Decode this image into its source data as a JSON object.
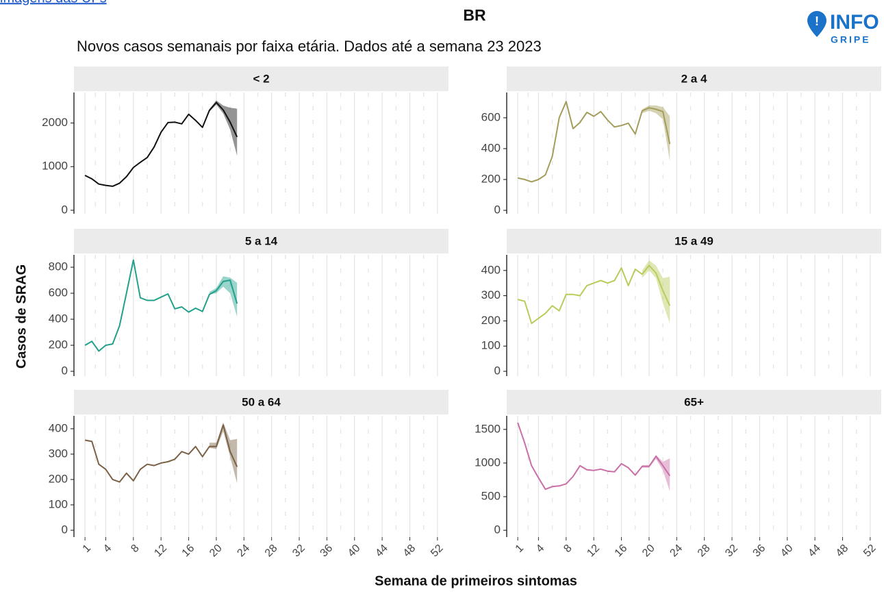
{
  "link_text": "imagens das UFs",
  "logo": {
    "line1": "INFO",
    "line2": "GRIPE"
  },
  "title": "BR",
  "subtitle": "Novos casos semanais por faixa etária. Dados até a semana 23 2023",
  "y_label": "Casos de SRAG",
  "x_label": "Semana de primeiros sintomas",
  "chart_data": [
    {
      "type": "line",
      "title": "< 2",
      "color": "#111111",
      "x": [
        1,
        2,
        3,
        4,
        5,
        6,
        7,
        8,
        9,
        10,
        11,
        12,
        13,
        14,
        15,
        16,
        17,
        18,
        19,
        20,
        21,
        22,
        23
      ],
      "values": [
        800,
        720,
        600,
        570,
        550,
        620,
        770,
        980,
        1100,
        1210,
        1450,
        1790,
        2010,
        2020,
        1980,
        2200,
        2060,
        1900,
        2290,
        2470,
        2300,
        2020,
        1680
      ],
      "lower": [
        null,
        null,
        null,
        null,
        null,
        null,
        null,
        null,
        null,
        null,
        null,
        null,
        null,
        null,
        null,
        null,
        null,
        1900,
        2260,
        2420,
        2220,
        1850,
        1250
      ],
      "upper": [
        null,
        null,
        null,
        null,
        null,
        null,
        null,
        null,
        null,
        null,
        null,
        null,
        null,
        null,
        null,
        null,
        null,
        1900,
        2320,
        2520,
        2400,
        2350,
        2330
      ],
      "xlim": [
        -0.6,
        53.6
      ],
      "xticks": [
        1,
        4,
        8,
        12,
        16,
        20,
        24,
        28,
        32,
        36,
        40,
        44,
        48,
        52
      ],
      "ylim": [
        -80,
        2700
      ],
      "yticks": [
        0,
        1000,
        2000
      ]
    },
    {
      "type": "line",
      "title": "2 a 4",
      "color": "#a39d5a",
      "x": [
        1,
        2,
        3,
        4,
        5,
        6,
        7,
        8,
        9,
        10,
        11,
        12,
        13,
        14,
        15,
        16,
        17,
        18,
        19,
        20,
        21,
        22,
        23
      ],
      "values": [
        210,
        200,
        185,
        200,
        230,
        350,
        600,
        705,
        530,
        570,
        635,
        610,
        640,
        585,
        540,
        550,
        565,
        495,
        645,
        665,
        655,
        640,
        430
      ],
      "lower": [
        null,
        null,
        null,
        null,
        null,
        null,
        null,
        null,
        null,
        null,
        null,
        null,
        null,
        null,
        null,
        null,
        null,
        null,
        630,
        645,
        630,
        590,
        320
      ],
      "upper": [
        null,
        null,
        null,
        null,
        null,
        null,
        null,
        null,
        null,
        null,
        null,
        null,
        null,
        null,
        null,
        null,
        null,
        null,
        655,
        680,
        680,
        670,
        610
      ],
      "xlim": [
        -0.6,
        53.6
      ],
      "xticks": [
        1,
        4,
        8,
        12,
        16,
        20,
        24,
        28,
        32,
        36,
        40,
        44,
        48,
        52
      ],
      "ylim": [
        -22,
        764
      ],
      "yticks": [
        0,
        200,
        400,
        600
      ]
    },
    {
      "type": "line",
      "title": "5 a 14",
      "color": "#21a08b",
      "x": [
        1,
        2,
        3,
        4,
        5,
        6,
        7,
        8,
        9,
        10,
        11,
        12,
        13,
        14,
        15,
        16,
        17,
        18,
        19,
        20,
        21,
        22,
        23
      ],
      "values": [
        200,
        230,
        155,
        200,
        210,
        350,
        600,
        855,
        565,
        545,
        545,
        570,
        595,
        480,
        495,
        455,
        485,
        460,
        590,
        620,
        690,
        700,
        520
      ],
      "lower": [
        null,
        null,
        null,
        null,
        null,
        null,
        null,
        null,
        null,
        null,
        null,
        null,
        null,
        null,
        null,
        null,
        null,
        null,
        590,
        600,
        650,
        600,
        420
      ],
      "upper": [
        null,
        null,
        null,
        null,
        null,
        null,
        null,
        null,
        null,
        null,
        null,
        null,
        null,
        null,
        null,
        null,
        null,
        null,
        610,
        640,
        730,
        720,
        680
      ],
      "xlim": [
        -0.6,
        53.6
      ],
      "xticks": [
        1,
        4,
        8,
        12,
        16,
        20,
        24,
        28,
        32,
        36,
        40,
        44,
        48,
        52
      ],
      "ylim": [
        -37,
        895
      ],
      "yticks": [
        0,
        200,
        400,
        600,
        800
      ]
    },
    {
      "type": "line",
      "title": "15 a 49",
      "color": "#b8cc5c",
      "x": [
        1,
        2,
        3,
        4,
        5,
        6,
        7,
        8,
        9,
        10,
        11,
        12,
        13,
        14,
        15,
        16,
        17,
        18,
        19,
        20,
        21,
        22,
        23
      ],
      "values": [
        285,
        278,
        190,
        210,
        230,
        260,
        240,
        305,
        305,
        300,
        340,
        350,
        360,
        350,
        360,
        410,
        340,
        405,
        385,
        420,
        390,
        320,
        260
      ],
      "lower": [
        null,
        null,
        null,
        null,
        null,
        null,
        null,
        null,
        null,
        null,
        null,
        null,
        null,
        null,
        null,
        null,
        null,
        null,
        370,
        400,
        370,
        270,
        190
      ],
      "upper": [
        null,
        null,
        null,
        null,
        null,
        null,
        null,
        null,
        null,
        null,
        null,
        null,
        null,
        null,
        null,
        null,
        null,
        null,
        400,
        440,
        420,
        370,
        375
      ],
      "xlim": [
        -0.6,
        53.6
      ],
      "xticks": [
        1,
        4,
        8,
        12,
        16,
        20,
        24,
        28,
        32,
        36,
        40,
        44,
        48,
        52
      ],
      "ylim": [
        -19,
        462
      ],
      "yticks": [
        0,
        100,
        200,
        300,
        400
      ]
    },
    {
      "type": "line",
      "title": "50 a 64",
      "color": "#7b6146",
      "x": [
        1,
        2,
        3,
        4,
        5,
        6,
        7,
        8,
        9,
        10,
        11,
        12,
        13,
        14,
        15,
        16,
        17,
        18,
        19,
        20,
        21,
        22,
        23
      ],
      "values": [
        355,
        350,
        260,
        240,
        200,
        190,
        225,
        195,
        240,
        260,
        255,
        265,
        270,
        280,
        310,
        300,
        330,
        290,
        330,
        330,
        415,
        310,
        250
      ],
      "lower": [
        null,
        null,
        null,
        null,
        null,
        null,
        null,
        null,
        null,
        null,
        null,
        null,
        null,
        null,
        null,
        null,
        null,
        null,
        325,
        320,
        390,
        290,
        185
      ],
      "upper": [
        null,
        null,
        null,
        null,
        null,
        null,
        null,
        null,
        null,
        null,
        null,
        null,
        null,
        null,
        null,
        null,
        null,
        null,
        345,
        345,
        425,
        355,
        360
      ],
      "xlim": [
        -0.6,
        53.6
      ],
      "xticks": [
        1,
        4,
        8,
        12,
        16,
        20,
        24,
        28,
        32,
        36,
        40,
        44,
        48,
        52
      ],
      "ylim": [
        -27,
        451
      ],
      "yticks": [
        0,
        100,
        200,
        300,
        400
      ]
    },
    {
      "type": "line",
      "title": "65+",
      "color": "#c96ea6",
      "x": [
        1,
        2,
        3,
        4,
        5,
        6,
        7,
        8,
        9,
        10,
        11,
        12,
        13,
        14,
        15,
        16,
        17,
        18,
        19,
        20,
        21,
        22,
        23
      ],
      "values": [
        1600,
        1300,
        960,
        780,
        610,
        650,
        660,
        690,
        800,
        960,
        900,
        890,
        910,
        880,
        870,
        990,
        930,
        820,
        950,
        950,
        1100,
        960,
        810
      ],
      "lower": [
        null,
        null,
        null,
        null,
        null,
        null,
        null,
        null,
        null,
        null,
        null,
        null,
        null,
        null,
        null,
        null,
        null,
        null,
        930,
        930,
        1060,
        890,
        580
      ],
      "upper": [
        null,
        null,
        null,
        null,
        null,
        null,
        null,
        null,
        null,
        null,
        null,
        null,
        null,
        null,
        null,
        null,
        null,
        null,
        970,
        970,
        1120,
        1020,
        1070
      ],
      "xlim": [
        -0.6,
        53.6
      ],
      "xticks": [
        1,
        4,
        8,
        12,
        16,
        20,
        24,
        28,
        32,
        36,
        40,
        44,
        48,
        52
      ],
      "ylim": [
        -101,
        1702
      ],
      "yticks": [
        0,
        500,
        1000,
        1500
      ]
    }
  ]
}
